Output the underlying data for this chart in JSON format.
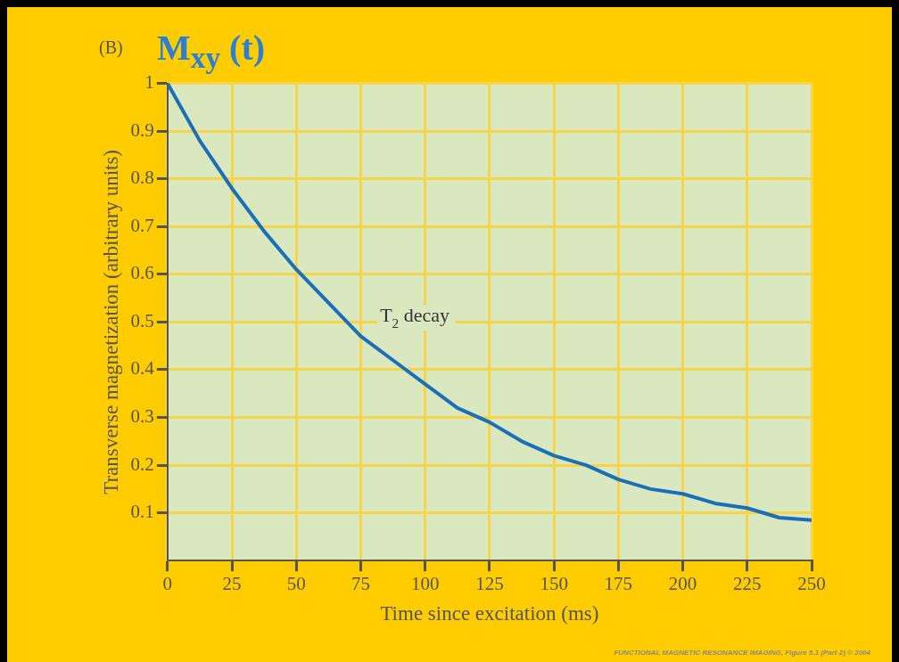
{
  "chart_data": {
    "type": "line",
    "title": "M$_{xy}$ (t)",
    "xlabel": "Time since excitation (ms)",
    "ylabel": "Transverse magnetization (arbitrary units)",
    "annotations": [
      "(B)",
      "T$_{2}$ decay",
      "FUNCTIONAL MAGNETIC RESONANCE IMAGING, Figure 5.1 (Part 2) © 2004"
    ],
    "x": [
      0,
      12.5,
      25,
      37.5,
      50,
      62.5,
      75,
      87.5,
      100,
      112.5,
      125,
      137.5,
      150,
      162.5,
      175,
      187.5,
      200,
      212.5,
      225,
      237.5,
      250
    ],
    "series": [
      {
        "color": "#1a6fb8",
        "values": [
          1,
          0.88,
          0.78,
          0.69,
          0.61,
          0.54,
          0.47,
          0.42,
          0.37,
          0.32,
          0.29,
          0.25,
          0.22,
          0.2,
          0.17,
          0.15,
          0.14,
          0.12,
          0.11,
          0.09,
          0.085
        ]
      }
    ],
    "xlim": [
      0,
      250
    ],
    "xticks": [
      0,
      25,
      50,
      75,
      100,
      125,
      150,
      175,
      200,
      225,
      250
    ],
    "ylim": [
      0,
      1
    ],
    "yticks": [
      0.1,
      0.2,
      0.3,
      0.4,
      0.5,
      0.6,
      0.7,
      0.8,
      0.9,
      1
    ],
    "grid": true,
    "legend": false,
    "marker": "none",
    "line_style": "solid"
  }
}
